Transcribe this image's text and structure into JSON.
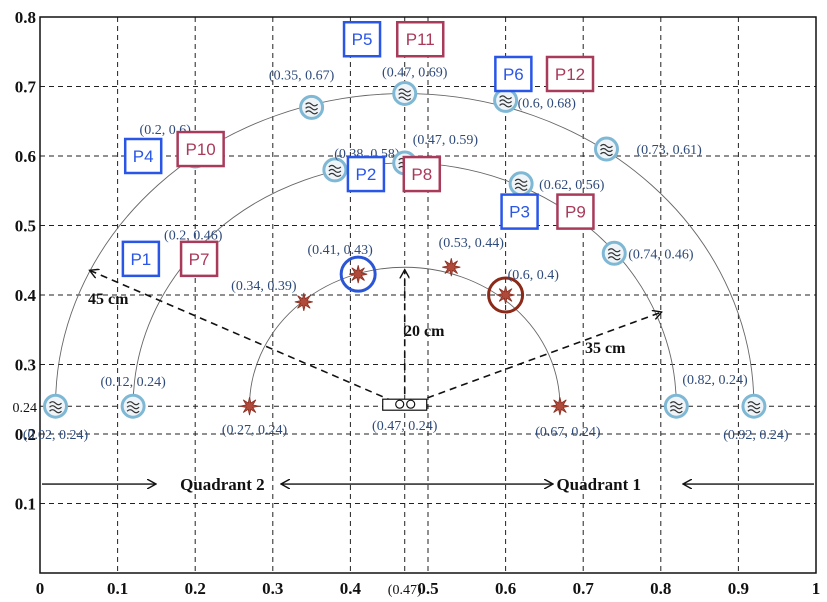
{
  "chart_data": {
    "type": "scatter",
    "xlim": [
      0,
      1
    ],
    "ylim": [
      0,
      0.8
    ],
    "x_ticks": [
      {
        "v": 0,
        "label": "0"
      },
      {
        "v": 0.1,
        "label": "0.1"
      },
      {
        "v": 0.2,
        "label": "0.2"
      },
      {
        "v": 0.3,
        "label": "0.3"
      },
      {
        "v": 0.4,
        "label": "0.4"
      },
      {
        "v": 0.47,
        "label": "(0.47)"
      },
      {
        "v": 0.5,
        "label": "0.5"
      },
      {
        "v": 0.6,
        "label": "0.6"
      },
      {
        "v": 0.7,
        "label": "0.7"
      },
      {
        "v": 0.8,
        "label": "0.8"
      },
      {
        "v": 0.9,
        "label": "0.9"
      },
      {
        "v": 1,
        "label": "1"
      }
    ],
    "y_ticks": [
      {
        "v": 0.1,
        "label": "0.1"
      },
      {
        "v": 0.2,
        "label": "0.2"
      },
      {
        "v": 0.24,
        "label": "0.24"
      },
      {
        "v": 0.3,
        "label": "0.3"
      },
      {
        "v": 0.4,
        "label": "0.4"
      },
      {
        "v": 0.5,
        "label": "0.5"
      },
      {
        "v": 0.6,
        "label": "0.6"
      },
      {
        "v": 0.7,
        "label": "0.7"
      },
      {
        "v": 0.8,
        "label": "0.8"
      }
    ],
    "grid": true,
    "center": {
      "x": 0.47,
      "y": 0.24,
      "label": "(0.47, 0.24)"
    },
    "arcs": [
      {
        "radius": 0.45,
        "label": "45 cm"
      },
      {
        "radius": 0.35,
        "label": "35 cm"
      },
      {
        "radius": 0.2,
        "label": "20 cm"
      }
    ],
    "mic_points": [
      {
        "x": 0.02,
        "y": 0.24,
        "label": "(0.02, 0.24)"
      },
      {
        "x": 0.12,
        "y": 0.24,
        "label": "(0.12, 0.24)"
      },
      {
        "x": 0.2,
        "y": 0.46,
        "label": "(0.2, 0.46)"
      },
      {
        "x": 0.2,
        "y": 0.6,
        "label": "(0.2, 0.6)"
      },
      {
        "x": 0.35,
        "y": 0.67,
        "label": "(0.35, 0.67)"
      },
      {
        "x": 0.38,
        "y": 0.58,
        "label": "(0.38, 0.58)"
      },
      {
        "x": 0.47,
        "y": 0.69,
        "label": "(0.47, 0.69)"
      },
      {
        "x": 0.47,
        "y": 0.59,
        "label": "(0.47, 0.59)"
      },
      {
        "x": 0.6,
        "y": 0.68,
        "label": "(0.6, 0.68)"
      },
      {
        "x": 0.62,
        "y": 0.56,
        "label": "(0.62, 0.56)"
      },
      {
        "x": 0.73,
        "y": 0.61,
        "label": "(0.73, 0.61)"
      },
      {
        "x": 0.74,
        "y": 0.46,
        "label": "(0.74, 0.46)"
      },
      {
        "x": 0.82,
        "y": 0.24,
        "label": "(0.82, 0.24)"
      },
      {
        "x": 0.92,
        "y": 0.24,
        "label": "(0.92, 0.24)"
      }
    ],
    "source_points": [
      {
        "x": 0.27,
        "y": 0.24,
        "label": "(0.27, 0.24)"
      },
      {
        "x": 0.34,
        "y": 0.39,
        "label": "(0.34, 0.39)"
      },
      {
        "x": 0.41,
        "y": 0.43,
        "label": "(0.41, 0.43)",
        "ring": "#2a56d6"
      },
      {
        "x": 0.53,
        "y": 0.44,
        "label": "(0.53, 0.44)"
      },
      {
        "x": 0.6,
        "y": 0.4,
        "label": "(0.6, 0.4)",
        "ring": "#8b2a18"
      },
      {
        "x": 0.67,
        "y": 0.24,
        "label": "(0.67, 0.24)"
      }
    ],
    "position_labels": [
      {
        "text": "P1",
        "x": 0.13,
        "y": 0.452,
        "color": "#2a56e8"
      },
      {
        "text": "P7",
        "x": 0.205,
        "y": 0.452,
        "color": "#a83a5a"
      },
      {
        "text": "P4",
        "x": 0.133,
        "y": 0.6,
        "color": "#2a56e8"
      },
      {
        "text": "P10",
        "x": 0.207,
        "y": 0.61,
        "color": "#a83a5a"
      },
      {
        "text": "P5",
        "x": 0.415,
        "y": 0.768,
        "color": "#2a56e8"
      },
      {
        "text": "P11",
        "x": 0.49,
        "y": 0.768,
        "color": "#a83a5a"
      },
      {
        "text": "P6",
        "x": 0.61,
        "y": 0.718,
        "color": "#2a56e8"
      },
      {
        "text": "P12",
        "x": 0.683,
        "y": 0.718,
        "color": "#a83a5a"
      },
      {
        "text": "P2",
        "x": 0.42,
        "y": 0.574,
        "color": "#2a56e8"
      },
      {
        "text": "P8",
        "x": 0.492,
        "y": 0.574,
        "color": "#a83a5a"
      },
      {
        "text": "P3",
        "x": 0.618,
        "y": 0.52,
        "color": "#2a56e8"
      },
      {
        "text": "P9",
        "x": 0.69,
        "y": 0.52,
        "color": "#a83a5a"
      }
    ],
    "quadrants": [
      {
        "label": "Quadrant 2",
        "x": 0.235
      },
      {
        "label": "Quadrant 1",
        "x": 0.72
      }
    ],
    "quadrant_y": 0.128
  }
}
